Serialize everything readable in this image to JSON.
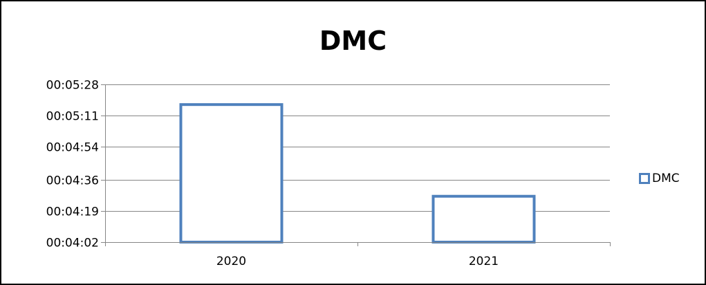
{
  "chart_data": {
    "type": "bar",
    "title": "DMC",
    "categories": [
      "2020",
      "2021"
    ],
    "series": [
      {
        "name": "DMC",
        "values": [
          "00:05:17",
          "00:04:27"
        ],
        "values_seconds": [
          317,
          267
        ]
      }
    ],
    "y_ticks": [
      "00:04:02",
      "00:04:19",
      "00:04:36",
      "00:04:54",
      "00:05:11",
      "00:05:28"
    ],
    "y_ticks_seconds": [
      242,
      259,
      276,
      294,
      311,
      328
    ],
    "ylim": [
      "00:04:02",
      "00:05:28"
    ],
    "ylim_seconds": [
      242,
      328
    ],
    "grid": true,
    "legend_position": "right",
    "colors": {
      "bar_outline": "#4f81bd",
      "bar_fill": "#ffffff",
      "gridline": "#868686",
      "frame": "#000000"
    }
  }
}
